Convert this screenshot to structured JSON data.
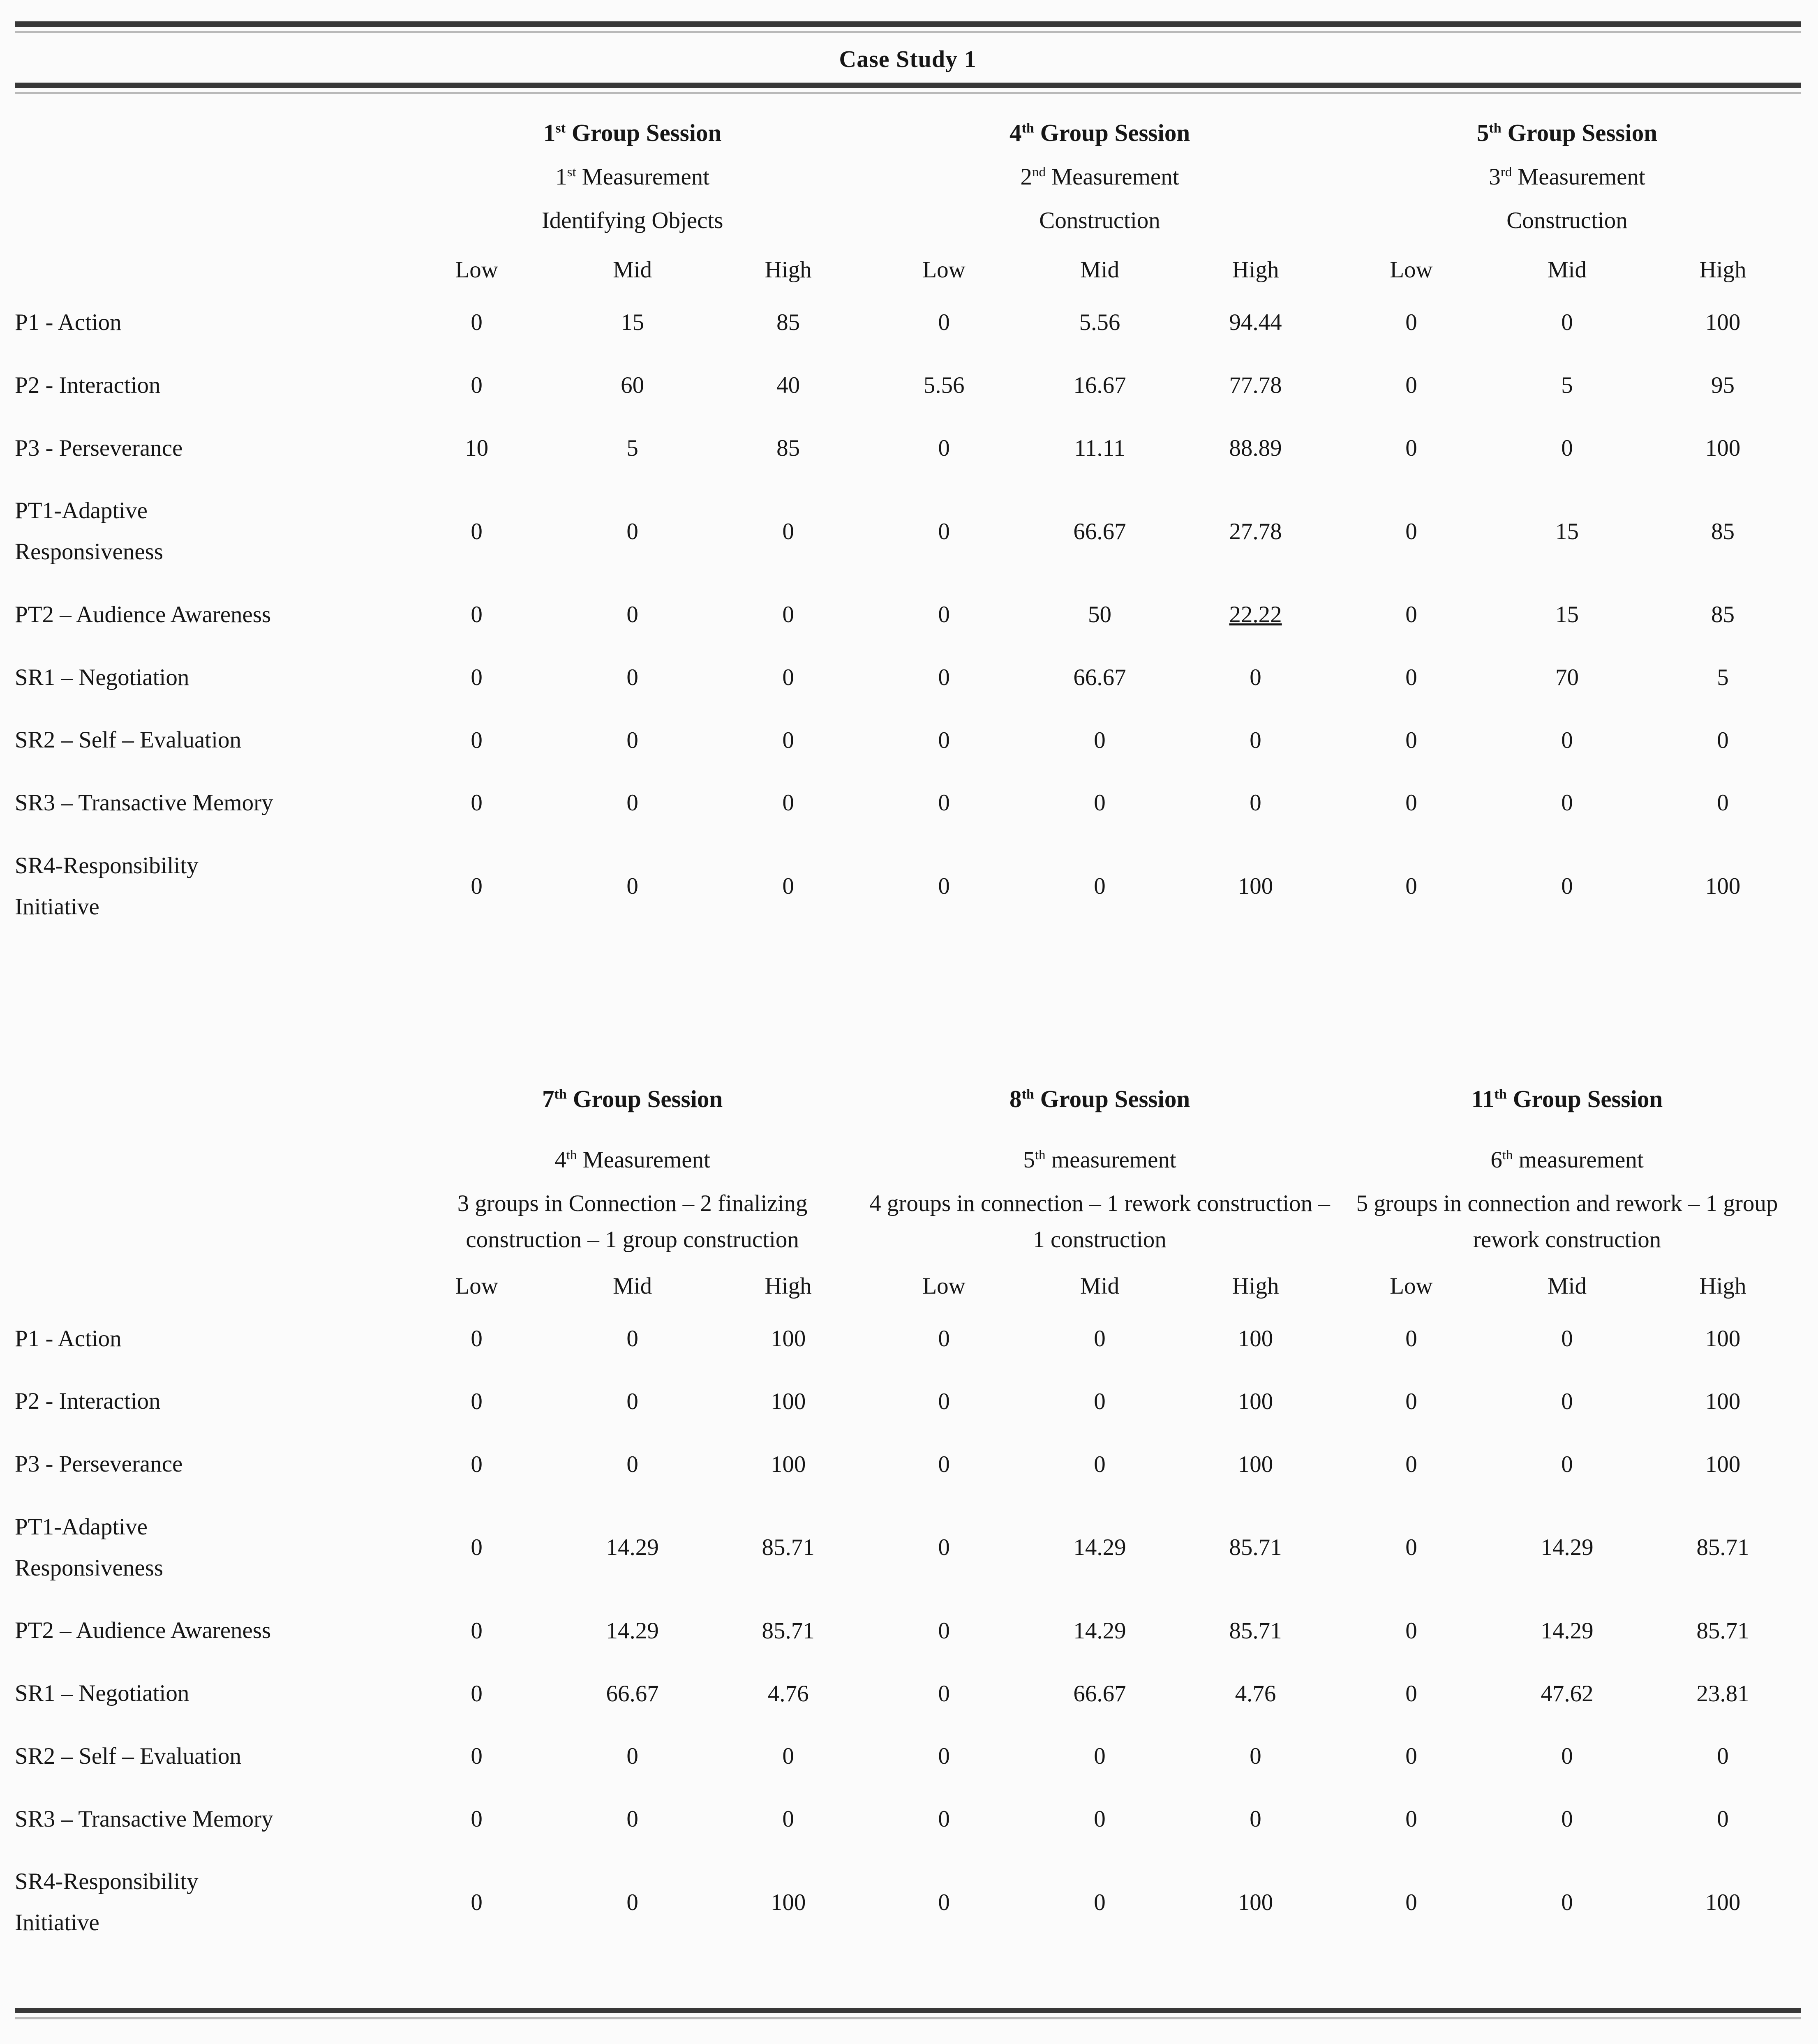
{
  "page": {
    "title": "Case Study 1"
  },
  "columns": {
    "levels": [
      "Low",
      "Mid",
      "High"
    ]
  },
  "tables": [
    {
      "sessions": [
        {
          "title": "1st Group Session",
          "lines": [
            "1st Measurement",
            "Identifying Objects"
          ]
        },
        {
          "title": "4th Group Session",
          "lines": [
            "2nd Measurement",
            "Construction"
          ]
        },
        {
          "title": "5th Group Session",
          "lines": [
            "3rd Measurement",
            "Construction"
          ]
        }
      ],
      "rows": [
        {
          "label": "P1 - Action",
          "values": [
            "0",
            "15",
            "85",
            "0",
            "5.56",
            "94.44",
            "0",
            "0",
            "100"
          ]
        },
        {
          "label": "P2 - Interaction",
          "values": [
            "0",
            "60",
            "40",
            "5.56",
            "16.67",
            "77.78",
            "0",
            "5",
            "95"
          ]
        },
        {
          "label": "P3 - Perseverance",
          "values": [
            "10",
            "5",
            "85",
            "0",
            "11.11",
            "88.89",
            "0",
            "0",
            "100"
          ]
        },
        {
          "label": "PT1-Adaptive\nResponsiveness",
          "values": [
            "0",
            "0",
            "0",
            "0",
            "66.67",
            "27.78",
            "0",
            "15",
            "85"
          ]
        },
        {
          "label": "PT2 – Audience Awareness",
          "values": [
            "0",
            "0",
            "0",
            "0",
            "50",
            "22.22",
            "0",
            "15",
            "85"
          ]
        },
        {
          "label": "SR1 – Negotiation",
          "values": [
            "0",
            "0",
            "0",
            "0",
            "66.67",
            "0",
            "0",
            "70",
            "5"
          ]
        },
        {
          "label": "SR2 – Self – Evaluation",
          "values": [
            "0",
            "0",
            "0",
            "0",
            "0",
            "0",
            "0",
            "0",
            "0"
          ]
        },
        {
          "label": "SR3 – Transactive Memory",
          "values": [
            "0",
            "0",
            "0",
            "0",
            "0",
            "0",
            "0",
            "0",
            "0"
          ]
        },
        {
          "label": "SR4-Responsibility\nInitiative",
          "values": [
            "0",
            "0",
            "0",
            "0",
            "0",
            "100",
            "0",
            "0",
            "100"
          ]
        }
      ],
      "underline_cell": {
        "row": 4,
        "col": 5
      }
    },
    {
      "sessions": [
        {
          "title": "7th Group Session",
          "lines": [
            "4th Measurement",
            "3 groups in Connection – 2 finalizing construction – 1 group construction"
          ]
        },
        {
          "title": "8th Group Session",
          "lines": [
            "5th measurement",
            "4 groups in connection – 1 rework construction – 1 construction"
          ]
        },
        {
          "title": "11th Group Session",
          "lines": [
            "6th measurement",
            "5 groups in connection and rework – 1 group rework construction"
          ]
        }
      ],
      "rows": [
        {
          "label": "P1 - Action",
          "values": [
            "0",
            "0",
            "100",
            "0",
            "0",
            "100",
            "0",
            "0",
            "100"
          ]
        },
        {
          "label": "P2 - Interaction",
          "values": [
            "0",
            "0",
            "100",
            "0",
            "0",
            "100",
            "0",
            "0",
            "100"
          ]
        },
        {
          "label": "P3 - Perseverance",
          "values": [
            "0",
            "0",
            "100",
            "0",
            "0",
            "100",
            "0",
            "0",
            "100"
          ]
        },
        {
          "label": "PT1-Adaptive\nResponsiveness",
          "values": [
            "0",
            "14.29",
            "85.71",
            "0",
            "14.29",
            "85.71",
            "0",
            "14.29",
            "85.71"
          ]
        },
        {
          "label": "PT2 – Audience Awareness",
          "values": [
            "0",
            "14.29",
            "85.71",
            "0",
            "14.29",
            "85.71",
            "0",
            "14.29",
            "85.71"
          ]
        },
        {
          "label": "SR1 – Negotiation",
          "values": [
            "0",
            "66.67",
            "4.76",
            "0",
            "66.67",
            "4.76",
            "0",
            "47.62",
            "23.81"
          ]
        },
        {
          "label": "SR2 – Self – Evaluation",
          "values": [
            "0",
            "0",
            "0",
            "0",
            "0",
            "0",
            "0",
            "0",
            "0"
          ]
        },
        {
          "label": "SR3 – Transactive Memory",
          "values": [
            "0",
            "0",
            "0",
            "0",
            "0",
            "0",
            "0",
            "0",
            "0"
          ]
        },
        {
          "label": "SR4-Responsibility\nInitiative",
          "values": [
            "0",
            "0",
            "100",
            "0",
            "0",
            "100",
            "0",
            "0",
            "100"
          ]
        }
      ]
    }
  ]
}
